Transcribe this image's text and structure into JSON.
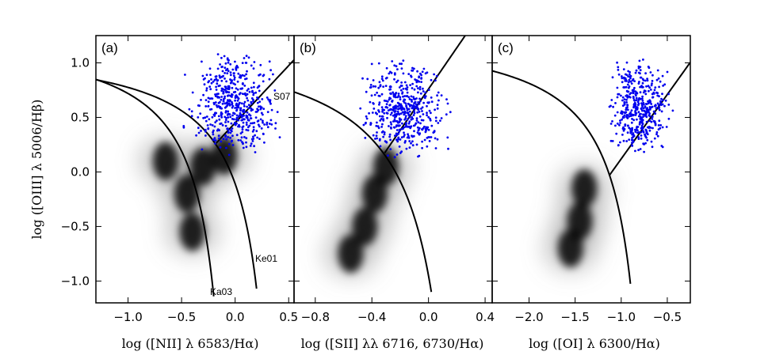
{
  "chart_data": {
    "type": "scatter",
    "ylabel": "log ([OIII] λ 5006/Hβ)",
    "ylim": [
      -1.2,
      1.25
    ],
    "yticks": [
      -1.0,
      -0.5,
      0.0,
      0.5,
      1.0
    ],
    "ytick_labels": [
      "−1.0",
      "−0.5",
      "0.0",
      "0.5",
      "1.0"
    ],
    "panels": [
      {
        "id": "a",
        "label": "(a)",
        "xlabel": "log ([NII] λ 6583/Hα)",
        "xlim": [
          -1.3,
          0.55
        ],
        "xticks": [
          -1.0,
          -0.5,
          0.0,
          0.5
        ],
        "xtick_labels": [
          "−1.0",
          "−0.5",
          "0.0",
          "0.5"
        ],
        "curves": [
          {
            "name": "Ke01",
            "formula": "0.61/(x-0.47)+1.19",
            "xmax": 0.2
          },
          {
            "name": "Ka03",
            "formula": "0.61/(x-0.05)+1.3",
            "xmax": -0.2
          },
          {
            "name": "S07",
            "formula": "1.05*x+0.45",
            "xmin": -0.18,
            "xmax": 0.55
          }
        ],
        "curve_labels": [
          "Ke01",
          "Ka03",
          "S07"
        ],
        "scatter": {
          "color": "#0000ee",
          "n": 520,
          "x_range": [
            -0.55,
            0.5
          ],
          "y_range": [
            0.15,
            1.1
          ]
        },
        "density_blobs": [
          {
            "x": -0.65,
            "y": 0.1
          },
          {
            "x": -0.45,
            "y": -0.2
          },
          {
            "x": -0.4,
            "y": -0.55
          },
          {
            "x": -0.3,
            "y": 0.05
          },
          {
            "x": -0.1,
            "y": 0.15
          }
        ]
      },
      {
        "id": "b",
        "label": "(b)",
        "xlabel": "log ([SII] λλ 6716, 6730/Hα)",
        "xlim": [
          -0.95,
          0.45
        ],
        "xticks": [
          -0.8,
          -0.4,
          0.0,
          0.4
        ],
        "xtick_labels": [
          "−0.8",
          "−0.4",
          "0.0",
          "0.4"
        ],
        "curves": [
          {
            "name": "Ke01",
            "formula": "0.72/(x-0.32)+1.3",
            "xmax": 0.02
          },
          {
            "name": "S07",
            "formula": "1.89*x+0.76",
            "xmin": -0.31,
            "xmax": 0.45
          }
        ],
        "curve_labels": [],
        "scatter": {
          "color": "#0000ee",
          "n": 500,
          "x_range": [
            -0.55,
            0.2
          ],
          "y_range": [
            0.1,
            1.05
          ]
        },
        "density_blobs": [
          {
            "x": -0.55,
            "y": -0.75
          },
          {
            "x": -0.45,
            "y": -0.5
          },
          {
            "x": -0.38,
            "y": -0.2
          },
          {
            "x": -0.3,
            "y": 0.05
          }
        ]
      },
      {
        "id": "c",
        "label": "(c)",
        "xlabel": "log ([OI] λ 6300/Hα)",
        "xlim": [
          -2.4,
          -0.25
        ],
        "xticks": [
          -2.0,
          -1.5,
          -1.0,
          -0.5
        ],
        "xtick_labels": [
          "−2.0",
          "−1.5",
          "−1.0",
          "−0.5"
        ],
        "curves": [
          {
            "name": "Ke01",
            "formula": "0.73/(x+0.59)+1.33",
            "xmax": -0.9
          },
          {
            "name": "S07",
            "formula": "1.18*x+1.30",
            "xmin": -1.13,
            "xmax": -0.25
          }
        ],
        "curve_labels": [],
        "scatter": {
          "color": "#0000ee",
          "n": 430,
          "x_range": [
            -1.2,
            -0.4
          ],
          "y_range": [
            0.15,
            1.05
          ]
        },
        "density_blobs": [
          {
            "x": -1.55,
            "y": -0.7
          },
          {
            "x": -1.45,
            "y": -0.45
          },
          {
            "x": -1.4,
            "y": -0.15
          }
        ]
      }
    ]
  }
}
